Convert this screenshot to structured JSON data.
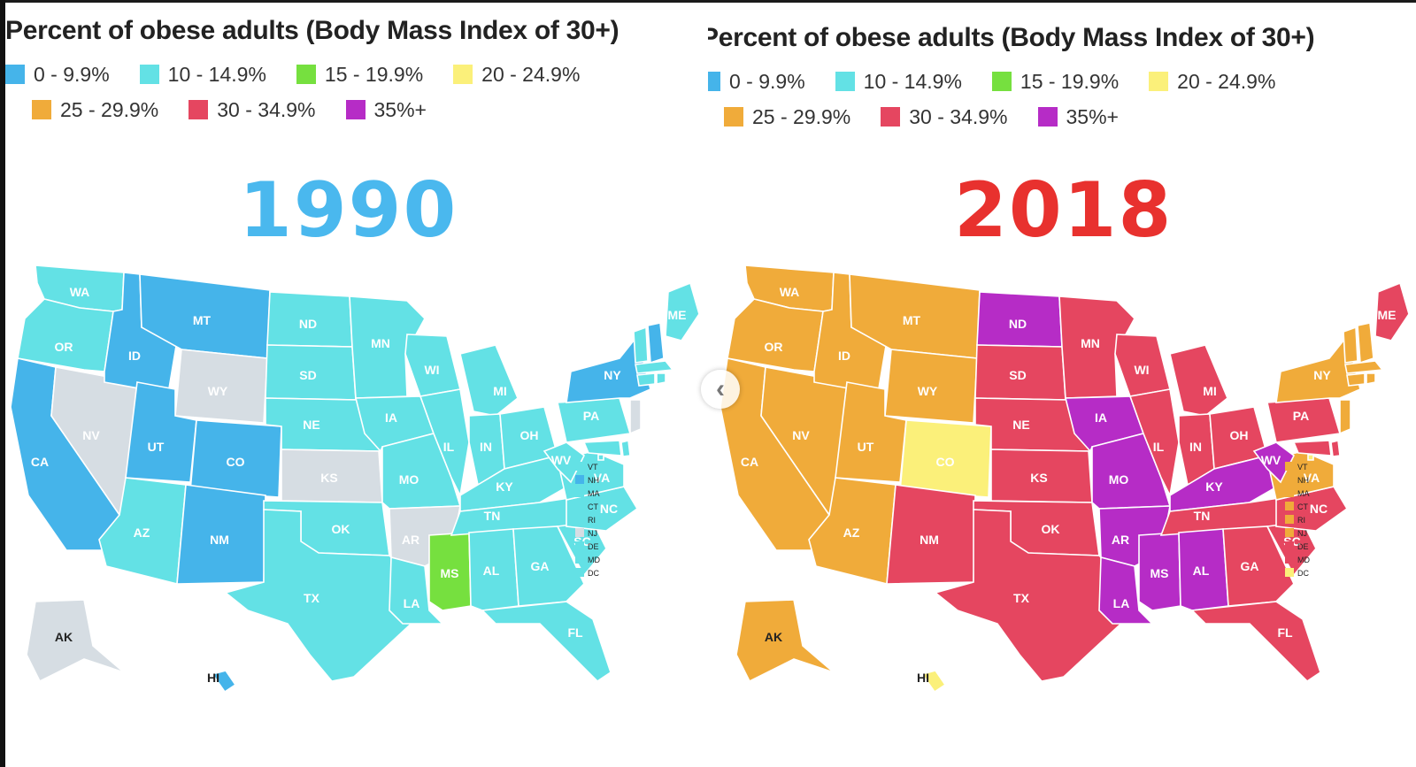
{
  "legend_title": "Percent of obese adults (Body Mass Index of 30+)",
  "legend": [
    {
      "label": "0 - 9.9%",
      "color": "#45b4ea"
    },
    {
      "label": "10 - 14.9%",
      "color": "#63e1e5"
    },
    {
      "label": "15 - 19.9%",
      "color": "#76e03f"
    },
    {
      "label": "20 - 24.9%",
      "color": "#fbf07a"
    },
    {
      "label": "25 - 29.9%",
      "color": "#f0ab3a"
    },
    {
      "label": "30 - 34.9%",
      "color": "#e54660"
    },
    {
      "label": "35%+",
      "color": "#b62cc6"
    }
  ],
  "no_data_color": "#d6dde3",
  "panels": [
    {
      "year": "1990",
      "year_color": "#4ab8ee"
    },
    {
      "year": "2018",
      "year_color": "#e8312e"
    }
  ],
  "map_1990": {
    "WA": 1,
    "OR": 1,
    "CA": 0,
    "NV": "none",
    "ID": 0,
    "MT": 0,
    "WY": "none",
    "UT": 0,
    "CO": 0,
    "AZ": 1,
    "NM": 0,
    "ND": 1,
    "SD": 1,
    "NE": 1,
    "KS": "none",
    "OK": 1,
    "TX": 1,
    "MN": 1,
    "IA": 1,
    "MO": 1,
    "AR": "none",
    "LA": 1,
    "WI": 1,
    "IL": 1,
    "MI": 1,
    "IN": 1,
    "OH": 1,
    "KY": 1,
    "TN": 1,
    "MS": 2,
    "AL": 1,
    "GA": 1,
    "FL": 1,
    "SC": 1,
    "NC": 1,
    "VA": 1,
    "WV": 1,
    "PA": 1,
    "NY": 0,
    "ME": 1,
    "AK": "none",
    "HI": 0,
    "VT": 1,
    "NH": 0,
    "MA": 1,
    "CT": 1,
    "RI": 1,
    "NJ": "none",
    "DE": 1,
    "MD": 1,
    "DC": 1
  },
  "map_2018": {
    "WA": 4,
    "OR": 4,
    "CA": 4,
    "NV": 4,
    "ID": 4,
    "MT": 4,
    "WY": 4,
    "UT": 4,
    "CO": 3,
    "AZ": 4,
    "NM": 5,
    "ND": 6,
    "SD": 5,
    "NE": 5,
    "KS": 5,
    "OK": 5,
    "TX": 5,
    "MN": 5,
    "IA": 6,
    "MO": 6,
    "AR": 6,
    "LA": 6,
    "WI": 5,
    "IL": 5,
    "MI": 5,
    "IN": 5,
    "OH": 5,
    "KY": 6,
    "TN": 5,
    "MS": 6,
    "AL": 6,
    "GA": 5,
    "FL": 5,
    "SC": 5,
    "NC": 5,
    "VA": 4,
    "WV": 6,
    "PA": 5,
    "NY": 4,
    "ME": 5,
    "AK": 4,
    "HI": 3,
    "VT": 4,
    "NH": 4,
    "MA": 4,
    "CT": 4,
    "RI": 4,
    "NJ": 4,
    "DE": 5,
    "MD": 5,
    "DC": 3
  },
  "small_state_labels": [
    "VT",
    "NH",
    "MA",
    "CT",
    "RI",
    "NJ",
    "DE",
    "MD",
    "DC"
  ],
  "nav_arrow_icon": "chevron-left-icon"
}
